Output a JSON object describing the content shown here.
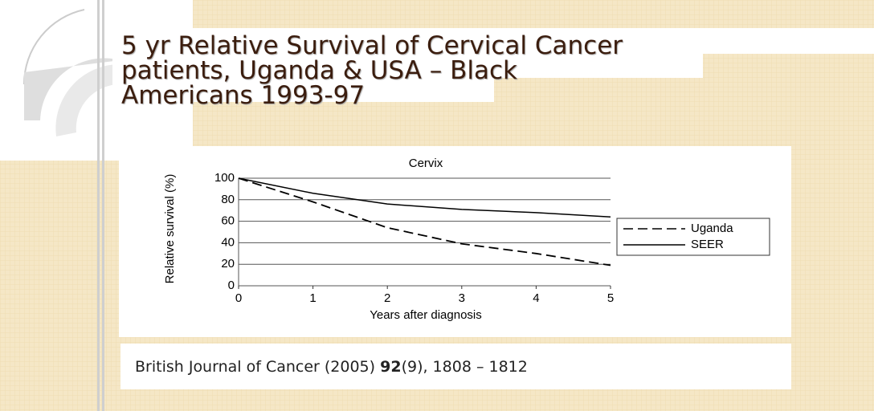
{
  "slide": {
    "title_lines": [
      "5 yr Relative Survival of Cervical Cancer",
      "patients, Uganda & USA – Black",
      "Americans 1993-97"
    ],
    "citation": [
      "British Journal of Cancer (2005) ",
      "92",
      "(9),  1808 – 1812"
    ]
  },
  "chart_data": {
    "type": "line",
    "title": "Cervix",
    "x_label": "Years after diagnosis",
    "y_label": "Relative survival (%)",
    "x": [
      0,
      1,
      2,
      3,
      4,
      5
    ],
    "series": [
      {
        "name": "Uganda",
        "color": "#000000",
        "dashed": true,
        "values": [
          100,
          78,
          54,
          39,
          30,
          19
        ]
      },
      {
        "name": "SEER",
        "color": "#000000",
        "dashed": false,
        "values": [
          100,
          86,
          76,
          71,
          68,
          64
        ]
      }
    ],
    "xlim": [
      0,
      5
    ],
    "xticks": [
      0,
      1,
      2,
      3,
      4,
      5
    ],
    "ylim": [
      0,
      100
    ],
    "yticks": [
      0,
      20,
      40,
      60,
      80,
      100
    ],
    "grid": true,
    "legend": "right"
  }
}
